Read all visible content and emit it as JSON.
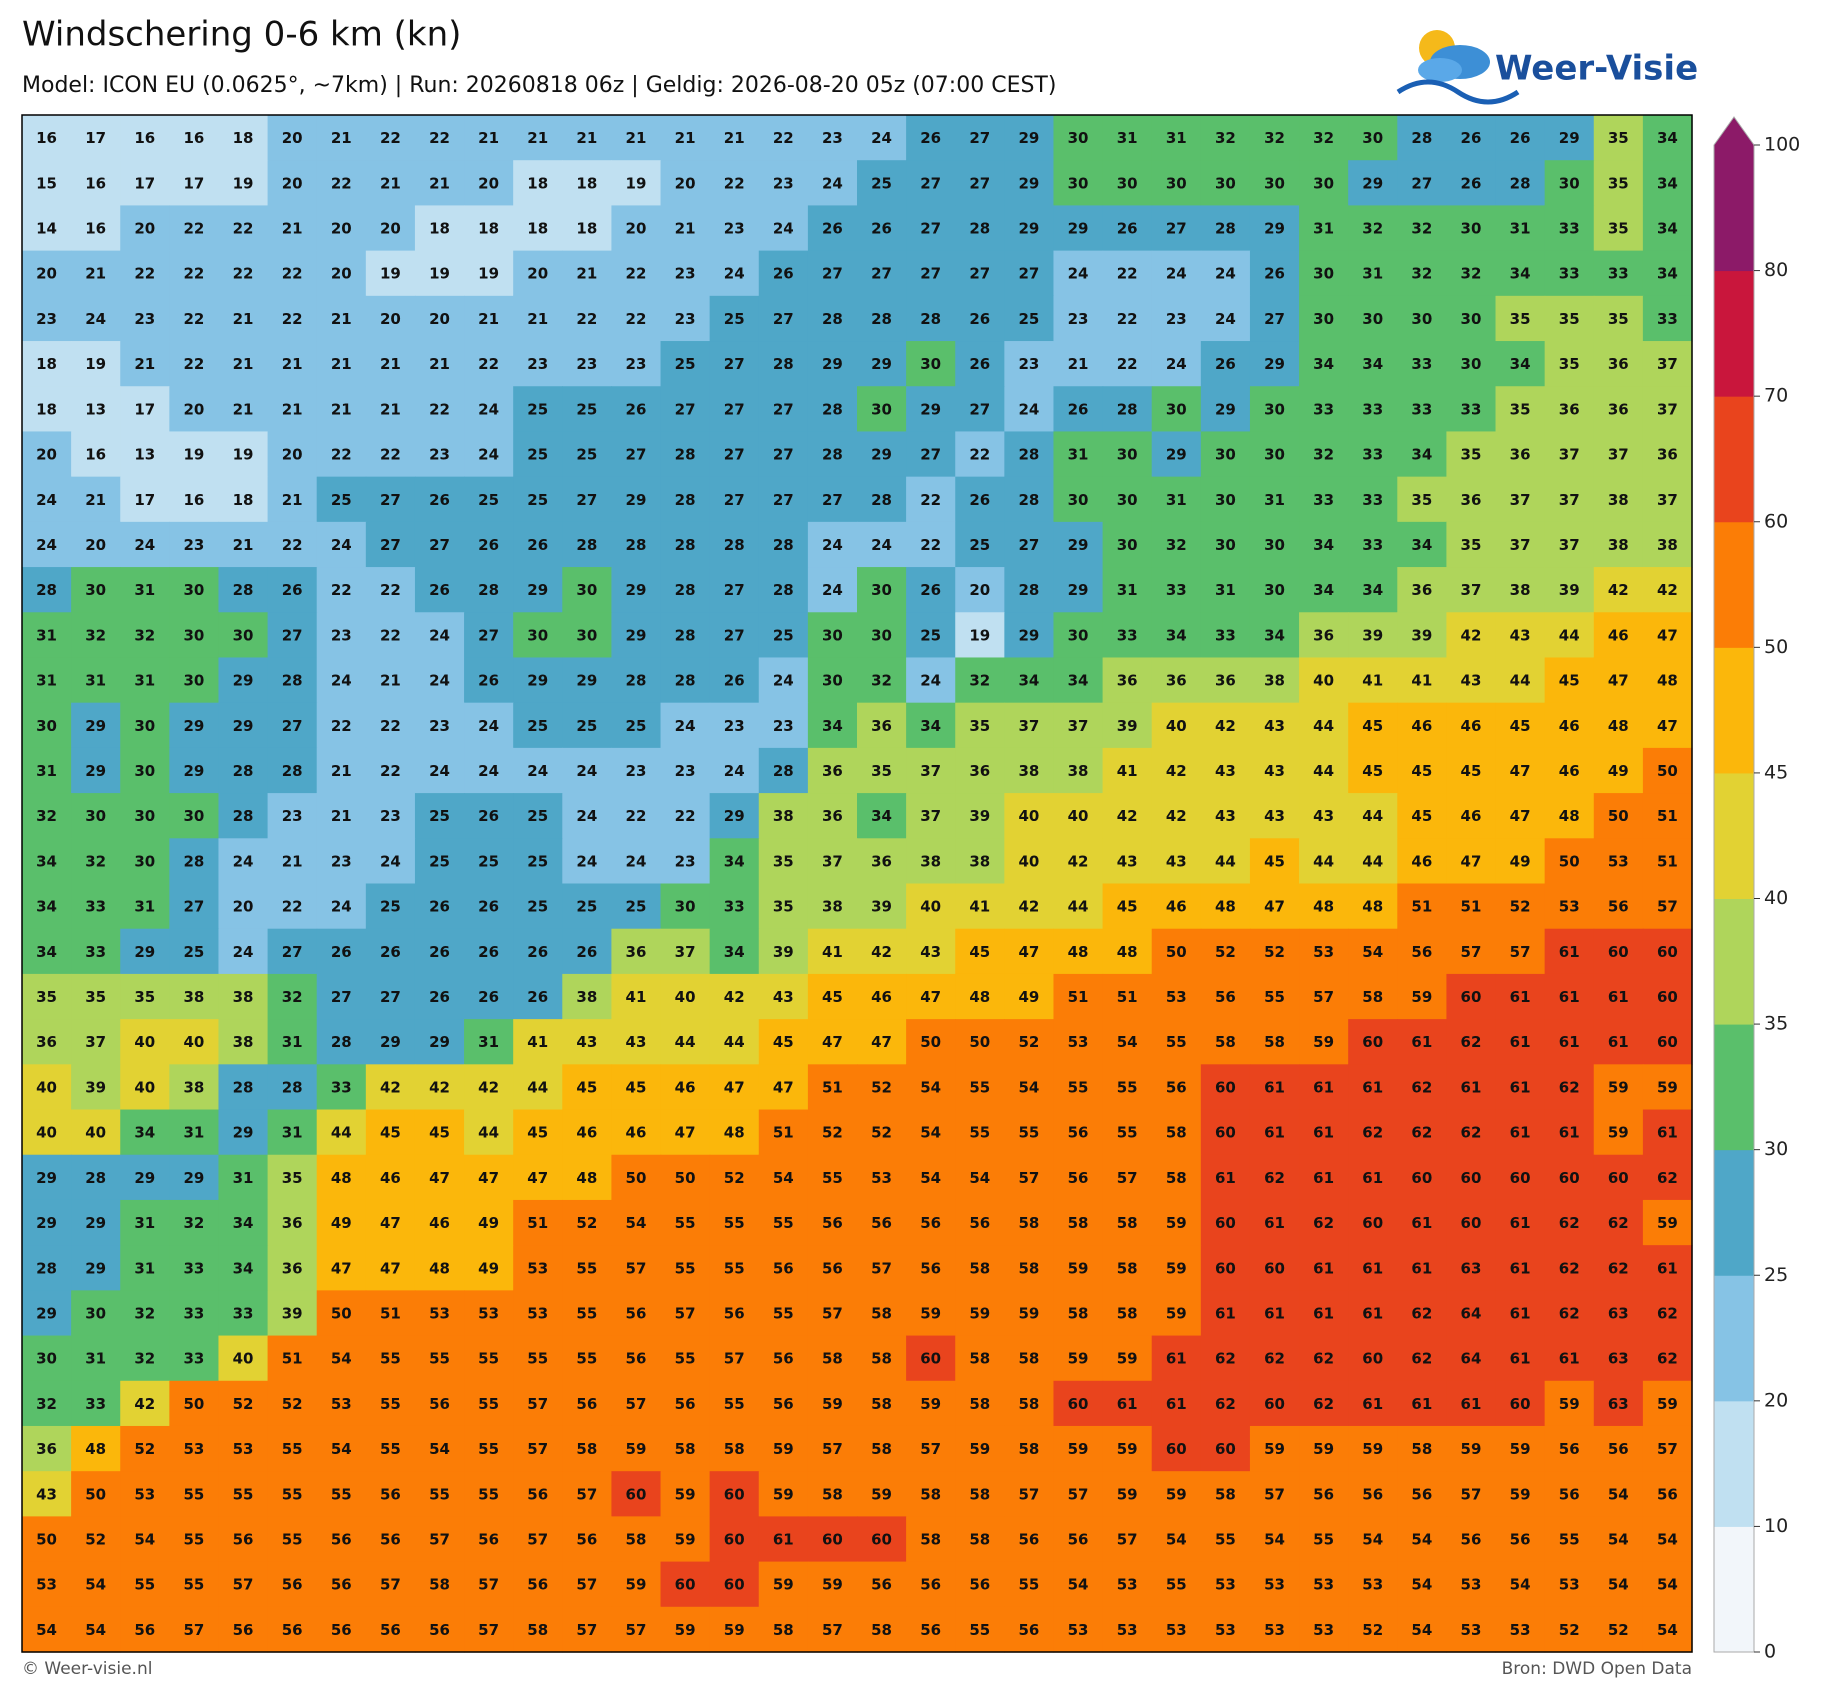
{
  "header": {
    "title": "Windschering 0-6 km (kn)",
    "subtitle": "Model: ICON EU (0.0625°, ~7km)  |  Run: 20260818 06z  |  Geldig: 2026-08-20 05z (07:00 CEST)"
  },
  "logo": {
    "text": "Weer-Visie"
  },
  "footer": {
    "left": "© Weer-visie.nl",
    "right": "Bron: DWD Open Data"
  },
  "colorbar": {
    "ticks": [
      0,
      10,
      20,
      25,
      30,
      35,
      40,
      45,
      50,
      60,
      70,
      80,
      100
    ],
    "colors": [
      "#f2f6fa",
      "#c0e0f1",
      "#86c3e5",
      "#4fa7c8",
      "#5abf6b",
      "#afd55b",
      "#e2d233",
      "#fbb70b",
      "#fb7d06",
      "#e9441d",
      "#c9163c",
      "#8c1a68"
    ]
  },
  "grid": {
    "rows": [
      [
        16,
        17,
        16,
        16,
        18,
        20,
        21,
        22,
        22,
        21,
        21,
        21,
        21,
        21,
        21,
        22,
        23,
        24,
        26,
        27,
        29,
        30,
        31,
        31,
        32,
        32,
        32,
        30,
        28,
        26,
        26,
        29,
        35,
        34
      ],
      [
        15,
        16,
        17,
        17,
        19,
        20,
        22,
        21,
        21,
        20,
        18,
        18,
        19,
        20,
        22,
        23,
        24,
        25,
        27,
        27,
        29,
        30,
        30,
        30,
        30,
        30,
        30,
        29,
        27,
        26,
        28,
        30,
        35,
        34
      ],
      [
        14,
        16,
        20,
        22,
        22,
        21,
        20,
        20,
        18,
        18,
        18,
        18,
        20,
        21,
        23,
        24,
        26,
        26,
        27,
        28,
        29,
        29,
        26,
        27,
        28,
        29,
        31,
        32,
        32,
        30,
        31,
        33,
        35,
        34
      ],
      [
        20,
        21,
        22,
        22,
        22,
        22,
        20,
        19,
        19,
        19,
        20,
        21,
        22,
        23,
        24,
        26,
        27,
        27,
        27,
        27,
        27,
        24,
        22,
        24,
        24,
        26,
        30,
        31,
        32,
        32,
        34,
        33,
        33,
        34
      ],
      [
        23,
        24,
        23,
        22,
        21,
        22,
        21,
        20,
        20,
        21,
        21,
        22,
        22,
        23,
        25,
        27,
        28,
        28,
        28,
        26,
        25,
        23,
        22,
        23,
        24,
        27,
        30,
        30,
        30,
        30,
        35,
        35,
        35,
        33
      ],
      [
        18,
        19,
        21,
        22,
        21,
        21,
        21,
        21,
        21,
        22,
        23,
        23,
        23,
        25,
        27,
        28,
        29,
        29,
        30,
        26,
        23,
        21,
        22,
        24,
        26,
        29,
        34,
        34,
        33,
        30,
        34,
        35,
        36,
        37
      ],
      [
        18,
        13,
        17,
        20,
        21,
        21,
        21,
        21,
        22,
        24,
        25,
        25,
        26,
        27,
        27,
        27,
        28,
        30,
        29,
        27,
        24,
        26,
        28,
        30,
        29,
        30,
        33,
        33,
        33,
        33,
        35,
        36,
        36,
        37
      ],
      [
        20,
        16,
        13,
        19,
        19,
        20,
        22,
        22,
        23,
        24,
        25,
        25,
        27,
        28,
        27,
        27,
        28,
        29,
        27,
        22,
        28,
        31,
        30,
        29,
        30,
        30,
        32,
        33,
        34,
        35,
        36,
        37,
        37,
        36
      ],
      [
        24,
        21,
        17,
        16,
        18,
        21,
        25,
        27,
        26,
        25,
        25,
        27,
        29,
        28,
        27,
        27,
        27,
        28,
        22,
        26,
        28,
        30,
        30,
        31,
        30,
        31,
        33,
        33,
        35,
        36,
        37,
        37,
        38,
        37
      ],
      [
        24,
        20,
        24,
        23,
        21,
        22,
        24,
        27,
        27,
        26,
        26,
        28,
        28,
        28,
        28,
        28,
        24,
        24,
        22,
        25,
        27,
        29,
        30,
        32,
        30,
        30,
        34,
        33,
        34,
        35,
        37,
        37,
        38,
        38
      ],
      [
        28,
        30,
        31,
        30,
        28,
        26,
        22,
        22,
        26,
        28,
        29,
        30,
        29,
        28,
        27,
        28,
        24,
        30,
        26,
        20,
        28,
        29,
        31,
        33,
        31,
        30,
        34,
        34,
        36,
        37,
        38,
        39,
        42,
        42
      ],
      [
        31,
        32,
        32,
        30,
        30,
        27,
        23,
        22,
        24,
        27,
        30,
        30,
        29,
        28,
        27,
        25,
        30,
        30,
        25,
        19,
        29,
        30,
        33,
        34,
        33,
        34,
        36,
        39,
        39,
        42,
        43,
        44,
        46,
        47
      ],
      [
        31,
        31,
        31,
        30,
        29,
        28,
        24,
        21,
        24,
        26,
        29,
        29,
        28,
        28,
        26,
        24,
        30,
        32,
        24,
        32,
        34,
        34,
        36,
        36,
        36,
        38,
        40,
        41,
        41,
        43,
        44,
        45,
        47,
        48
      ],
      [
        30,
        29,
        30,
        29,
        29,
        27,
        22,
        22,
        23,
        24,
        25,
        25,
        25,
        24,
        23,
        23,
        34,
        36,
        34,
        35,
        37,
        37,
        39,
        40,
        42,
        43,
        44,
        45,
        46,
        46,
        45,
        46,
        48,
        47
      ],
      [
        31,
        29,
        30,
        29,
        28,
        28,
        21,
        22,
        24,
        24,
        24,
        24,
        23,
        23,
        24,
        28,
        36,
        35,
        37,
        36,
        38,
        38,
        41,
        42,
        43,
        43,
        44,
        45,
        45,
        45,
        47,
        46,
        49,
        50
      ],
      [
        32,
        30,
        30,
        30,
        28,
        23,
        21,
        23,
        25,
        26,
        25,
        24,
        22,
        22,
        29,
        38,
        36,
        34,
        37,
        39,
        40,
        40,
        42,
        42,
        43,
        43,
        43,
        44,
        45,
        46,
        47,
        48,
        50,
        51
      ],
      [
        34,
        32,
        30,
        28,
        24,
        21,
        23,
        24,
        25,
        25,
        25,
        24,
        24,
        23,
        34,
        35,
        37,
        36,
        38,
        38,
        40,
        42,
        43,
        43,
        44,
        45,
        44,
        44,
        46,
        47,
        49,
        50,
        53,
        51
      ],
      [
        34,
        33,
        31,
        27,
        20,
        22,
        24,
        25,
        26,
        26,
        25,
        25,
        25,
        30,
        33,
        35,
        38,
        39,
        40,
        41,
        42,
        44,
        45,
        46,
        48,
        47,
        48,
        48,
        51,
        51,
        52,
        53,
        56,
        57
      ],
      [
        34,
        33,
        29,
        25,
        24,
        27,
        26,
        26,
        26,
        26,
        26,
        26,
        36,
        37,
        34,
        39,
        41,
        42,
        43,
        45,
        47,
        48,
        48,
        50,
        52,
        52,
        53,
        54,
        56,
        57,
        57,
        61,
        60,
        60
      ],
      [
        35,
        35,
        35,
        38,
        38,
        32,
        27,
        27,
        26,
        26,
        26,
        38,
        41,
        40,
        42,
        43,
        45,
        46,
        47,
        48,
        49,
        51,
        51,
        53,
        56,
        55,
        57,
        58,
        59,
        60,
        61,
        61,
        61,
        60
      ],
      [
        36,
        37,
        40,
        40,
        38,
        31,
        28,
        29,
        29,
        31,
        41,
        43,
        43,
        44,
        44,
        45,
        47,
        47,
        50,
        50,
        52,
        53,
        54,
        55,
        58,
        58,
        59,
        60,
        61,
        62,
        61,
        61,
        61,
        60
      ],
      [
        40,
        39,
        40,
        38,
        28,
        28,
        33,
        42,
        42,
        42,
        44,
        45,
        45,
        46,
        47,
        47,
        51,
        52,
        54,
        55,
        54,
        55,
        55,
        56,
        60,
        61,
        61,
        61,
        62,
        61,
        61,
        62,
        59,
        59
      ],
      [
        40,
        40,
        34,
        31,
        29,
        31,
        44,
        45,
        45,
        44,
        45,
        46,
        46,
        47,
        48,
        51,
        52,
        52,
        54,
        55,
        55,
        56,
        55,
        58,
        60,
        61,
        61,
        62,
        62,
        62,
        61,
        61,
        59,
        61
      ],
      [
        29,
        28,
        29,
        29,
        31,
        35,
        48,
        46,
        47,
        47,
        47,
        48,
        50,
        50,
        52,
        54,
        55,
        53,
        54,
        54,
        57,
        56,
        57,
        58,
        61,
        62,
        61,
        61,
        60,
        60,
        60,
        60,
        60,
        62
      ],
      [
        29,
        29,
        31,
        32,
        34,
        36,
        49,
        47,
        46,
        49,
        51,
        52,
        54,
        55,
        55,
        55,
        56,
        56,
        56,
        56,
        58,
        58,
        58,
        59,
        60,
        61,
        62,
        60,
        61,
        60,
        61,
        62,
        62,
        59
      ],
      [
        28,
        29,
        31,
        33,
        34,
        36,
        47,
        47,
        48,
        49,
        53,
        55,
        57,
        55,
        55,
        56,
        56,
        57,
        56,
        58,
        58,
        59,
        58,
        59,
        60,
        60,
        61,
        61,
        61,
        63,
        61,
        62,
        62,
        61
      ],
      [
        29,
        30,
        32,
        33,
        33,
        39,
        50,
        51,
        53,
        53,
        53,
        55,
        56,
        57,
        56,
        55,
        57,
        58,
        59,
        59,
        59,
        58,
        58,
        59,
        61,
        61,
        61,
        61,
        62,
        64,
        61,
        62,
        63,
        62
      ],
      [
        30,
        31,
        32,
        33,
        40,
        51,
        54,
        55,
        55,
        55,
        55,
        55,
        56,
        55,
        57,
        56,
        58,
        58,
        60,
        58,
        58,
        59,
        59,
        61,
        62,
        62,
        62,
        60,
        62,
        64,
        61,
        61,
        63,
        62
      ],
      [
        32,
        33,
        42,
        50,
        52,
        52,
        53,
        55,
        56,
        55,
        57,
        56,
        57,
        56,
        55,
        56,
        59,
        58,
        59,
        58,
        58,
        60,
        61,
        61,
        62,
        60,
        62,
        61,
        61,
        61,
        60,
        59,
        63,
        59
      ],
      [
        36,
        48,
        52,
        53,
        53,
        55,
        54,
        55,
        54,
        55,
        57,
        58,
        59,
        58,
        58,
        59,
        57,
        58,
        57,
        59,
        58,
        59,
        59,
        60,
        60,
        59,
        59,
        59,
        58,
        59,
        59,
        56,
        56,
        57
      ],
      [
        43,
        50,
        53,
        55,
        55,
        55,
        55,
        56,
        55,
        55,
        56,
        57,
        60,
        59,
        60,
        59,
        58,
        59,
        58,
        58,
        57,
        57,
        59,
        59,
        58,
        57,
        56,
        56,
        56,
        57,
        59,
        56,
        54,
        56
      ],
      [
        50,
        52,
        54,
        55,
        56,
        55,
        56,
        56,
        57,
        56,
        57,
        56,
        58,
        59,
        60,
        61,
        60,
        60,
        58,
        58,
        56,
        56,
        57,
        54,
        55,
        54,
        55,
        54,
        54,
        56,
        56,
        55,
        54,
        54
      ],
      [
        53,
        54,
        55,
        55,
        57,
        56,
        56,
        57,
        58,
        57,
        56,
        57,
        59,
        60,
        60,
        59,
        59,
        56,
        56,
        56,
        55,
        54,
        53,
        55,
        53,
        53,
        53,
        53,
        54,
        53,
        54,
        53,
        54,
        54
      ],
      [
        54,
        54,
        56,
        57,
        56,
        56,
        56,
        56,
        56,
        57,
        58,
        57,
        57,
        59,
        59,
        58,
        57,
        58,
        56,
        55,
        56,
        53,
        53,
        53,
        53,
        53,
        53,
        52,
        54,
        53,
        53,
        52,
        52,
        54
      ]
    ]
  }
}
